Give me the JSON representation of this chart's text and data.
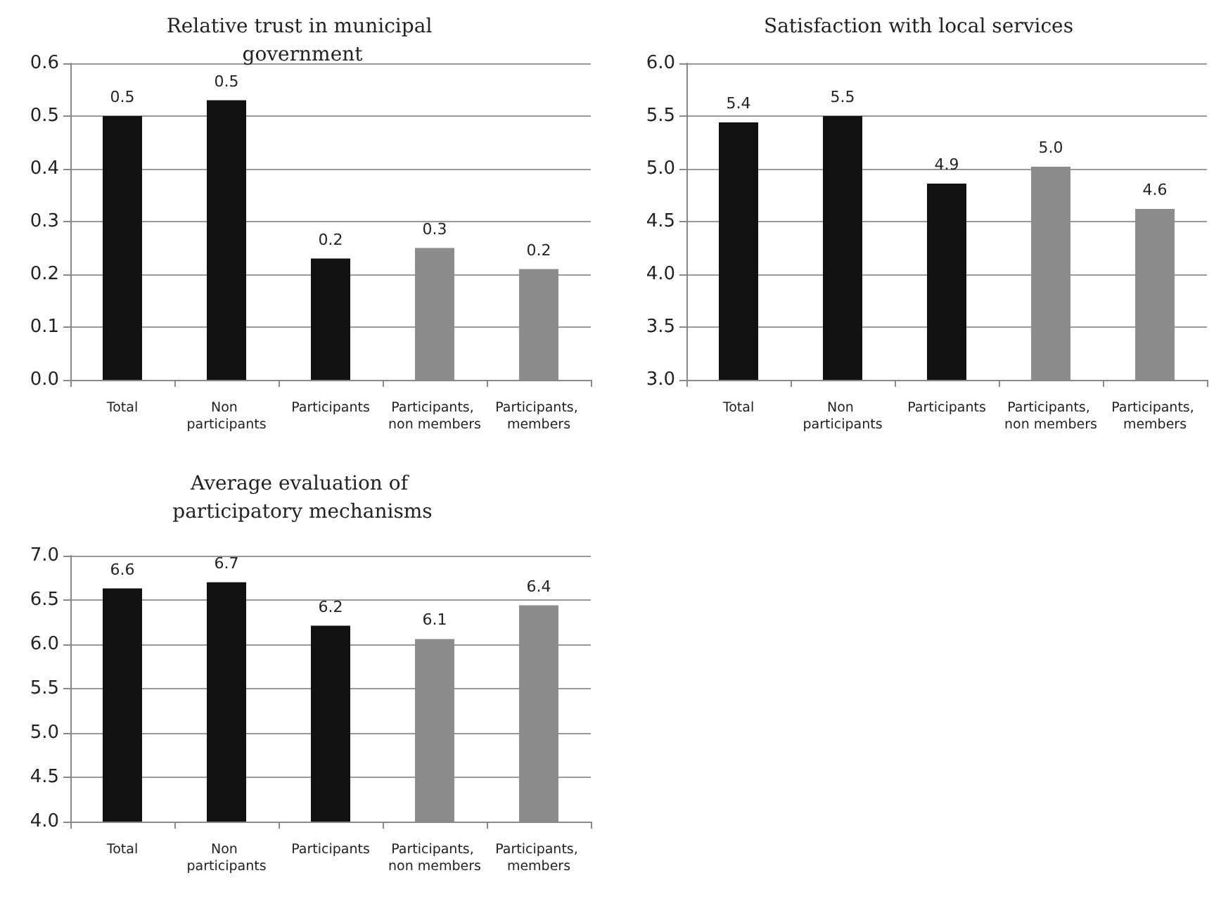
{
  "chart_data": [
    {
      "type": "bar",
      "title": "Relative trust in municipal government",
      "categories": [
        "Total",
        "Non participants",
        "Participants",
        "Participants, non members",
        "Participants, members"
      ],
      "values": [
        0.5,
        0.53,
        0.23,
        0.25,
        0.21
      ],
      "colors": [
        "#111111",
        "#111111",
        "#111111",
        "#8c8c8c",
        "#8c8c8c"
      ],
      "value_labels": [
        "0.5",
        "0.5",
        "0.2",
        "0.3",
        "0.2"
      ],
      "ylim": [
        0,
        0.6
      ],
      "yticks": [
        {
          "value": 0,
          "label": "0.0"
        },
        0.1,
        0.2,
        0.3,
        0.4,
        0.5,
        0.6
      ],
      "grid": "y"
    },
    {
      "type": "bar",
      "title": "Satisfaction with local services",
      "categories": [
        "Total",
        "Non participants",
        "Participants",
        "Participants, non members",
        "Participants, members"
      ],
      "values": [
        5.44,
        5.5,
        4.86,
        5.02,
        4.62
      ],
      "colors": [
        "#111111",
        "#111111",
        "#111111",
        "#8c8c8c",
        "#8c8c8c"
      ],
      "value_labels": [
        "5.4",
        "5.5",
        "4.9",
        "5.0",
        "4.6"
      ],
      "ylim": [
        3,
        6
      ],
      "yticks": [
        {
          "value": 3,
          "label": "3.0"
        },
        3.5,
        {
          "value": 4,
          "label": "4.0"
        },
        4.5,
        {
          "value": 5,
          "label": "5.0"
        },
        5.5,
        {
          "value": 6,
          "label": "6.0"
        }
      ],
      "grid": "y"
    },
    {
      "type": "bar",
      "title": "Average evaluation of participatory mechanisms",
      "categories": [
        "Total",
        "Non participants",
        "Participants",
        "Participants, non members",
        "Participants, members"
      ],
      "values": [
        6.63,
        6.7,
        6.21,
        6.06,
        6.44
      ],
      "colors": [
        "#111111",
        "#111111",
        "#111111",
        "#8c8c8c",
        "#8c8c8c"
      ],
      "value_labels": [
        "6.6",
        "6.7",
        "6.2",
        "6.1",
        "6.4"
      ],
      "ylim": [
        4,
        7
      ],
      "yticks": [
        {
          "value": 4,
          "label": "4.0"
        },
        4.5,
        {
          "value": 5,
          "label": "5.0"
        },
        5.5,
        {
          "value": 6,
          "label": "6.0"
        },
        6.5,
        {
          "value": 7,
          "label": "7.0"
        }
      ],
      "grid": "y"
    }
  ]
}
